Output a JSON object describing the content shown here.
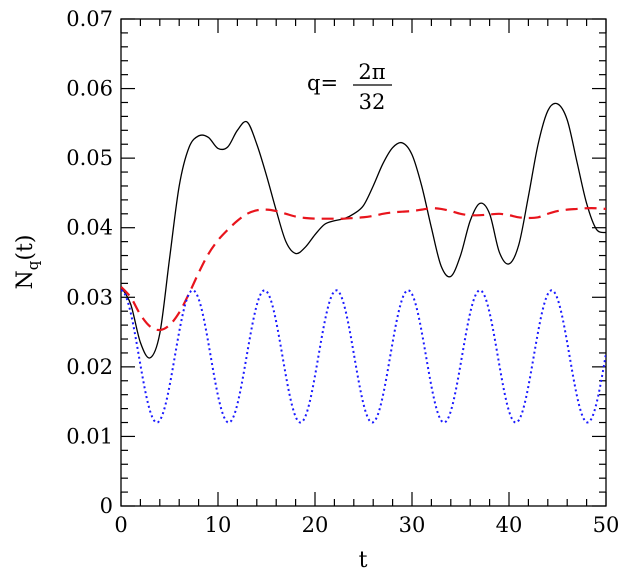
{
  "chart_data": {
    "type": "line",
    "xlabel": "t",
    "ylabel_main": "N",
    "ylabel_sub": "q",
    "ylabel_tail": "(t)",
    "xlim": [
      0,
      50
    ],
    "ylim": [
      0,
      0.07
    ],
    "grid": false,
    "x_ticks": [
      0,
      10,
      20,
      30,
      40,
      50
    ],
    "x_tick_labels": [
      "0",
      "10",
      "20",
      "30",
      "40",
      "50"
    ],
    "y_ticks": [
      0,
      0.01,
      0.02,
      0.03,
      0.04,
      0.05,
      0.06,
      0.07
    ],
    "y_tick_labels": [
      "0",
      "0.01",
      "0.02",
      "0.03",
      "0.04",
      "0.05",
      "0.06",
      "0.07"
    ],
    "annotation": {
      "lhs": "q=",
      "numerator": "2π",
      "denominator": "32"
    },
    "series": [
      {
        "color": "#000000",
        "style": "solid",
        "x": [
          0,
          1,
          2,
          3,
          4,
          5,
          6,
          7,
          8,
          9,
          10,
          11,
          12,
          13,
          14,
          15,
          16,
          17,
          18,
          19,
          20,
          21,
          22,
          23,
          24,
          25,
          26,
          27,
          28,
          29,
          30,
          31,
          32,
          33,
          34,
          35,
          36,
          37,
          38,
          39,
          40,
          41,
          42,
          43,
          44,
          45,
          46,
          47,
          48,
          49,
          50
        ],
        "y": [
          0.0315,
          0.029,
          0.0235,
          0.0213,
          0.0248,
          0.0355,
          0.046,
          0.0515,
          0.0532,
          0.053,
          0.0514,
          0.0516,
          0.054,
          0.0552,
          0.052,
          0.0475,
          0.0425,
          0.038,
          0.0363,
          0.0372,
          0.039,
          0.0405,
          0.041,
          0.0413,
          0.042,
          0.0432,
          0.046,
          0.0492,
          0.0515,
          0.0522,
          0.0505,
          0.046,
          0.04,
          0.0345,
          0.033,
          0.036,
          0.041,
          0.0435,
          0.042,
          0.0365,
          0.0348,
          0.0375,
          0.0445,
          0.052,
          0.0568,
          0.0578,
          0.0555,
          0.0495,
          0.0435,
          0.0398,
          0.0393
        ]
      },
      {
        "color": "#e8141c",
        "style": "dashed",
        "x": [
          0,
          1,
          2,
          3,
          4,
          5,
          6,
          7,
          8,
          9,
          10,
          11,
          12,
          13,
          14,
          15,
          16,
          17,
          18,
          19,
          20,
          21,
          22,
          23,
          24,
          25,
          26,
          27,
          28,
          29,
          30,
          31,
          32,
          33,
          34,
          35,
          36,
          37,
          38,
          39,
          40,
          41,
          42,
          43,
          44,
          45,
          46,
          47,
          48,
          49,
          50
        ],
        "y": [
          0.0315,
          0.03,
          0.0275,
          0.0258,
          0.0253,
          0.026,
          0.0278,
          0.0305,
          0.0335,
          0.0362,
          0.0382,
          0.0397,
          0.041,
          0.042,
          0.0425,
          0.0426,
          0.0424,
          0.042,
          0.0416,
          0.0414,
          0.0413,
          0.0413,
          0.0413,
          0.0413,
          0.0414,
          0.0415,
          0.0417,
          0.042,
          0.0422,
          0.0423,
          0.0424,
          0.0426,
          0.0428,
          0.0427,
          0.0424,
          0.042,
          0.0418,
          0.0418,
          0.0419,
          0.042,
          0.0418,
          0.0415,
          0.0414,
          0.0415,
          0.042,
          0.0424,
          0.0426,
          0.0427,
          0.0428,
          0.0428,
          0.0427
        ]
      },
      {
        "color": "#1a1aff",
        "style": "dotted",
        "formula": "0.0215 + 0.0095*cos(2*pi*t/7.4)",
        "mean": 0.0215,
        "amplitude": 0.0095,
        "period": 7.4
      }
    ]
  }
}
